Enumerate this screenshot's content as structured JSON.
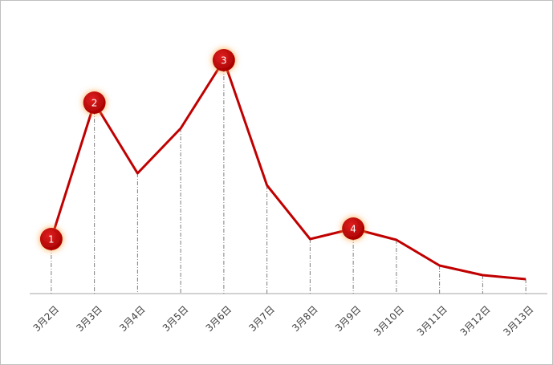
{
  "chart_data": {
    "type": "line",
    "categories": [
      "3月2日",
      "3月3日",
      "3月4日",
      "3月5日",
      "3月6日",
      "3月7日",
      "3月8日",
      "3月9日",
      "3月10日",
      "3月11日",
      "3月12日",
      "3月13日"
    ],
    "values": [
      68,
      238,
      150,
      206,
      291,
      135,
      68,
      81,
      67,
      35,
      23,
      18
    ],
    "color": "#c00000",
    "ylim": [
      0,
      300
    ],
    "drop_lines": true,
    "annotations": [
      {
        "text": "1",
        "x": "3月2日"
      },
      {
        "text": "2",
        "x": "3月3日"
      },
      {
        "text": "3",
        "x": "3月6日"
      },
      {
        "text": "4",
        "x": "3月9日"
      }
    ]
  }
}
